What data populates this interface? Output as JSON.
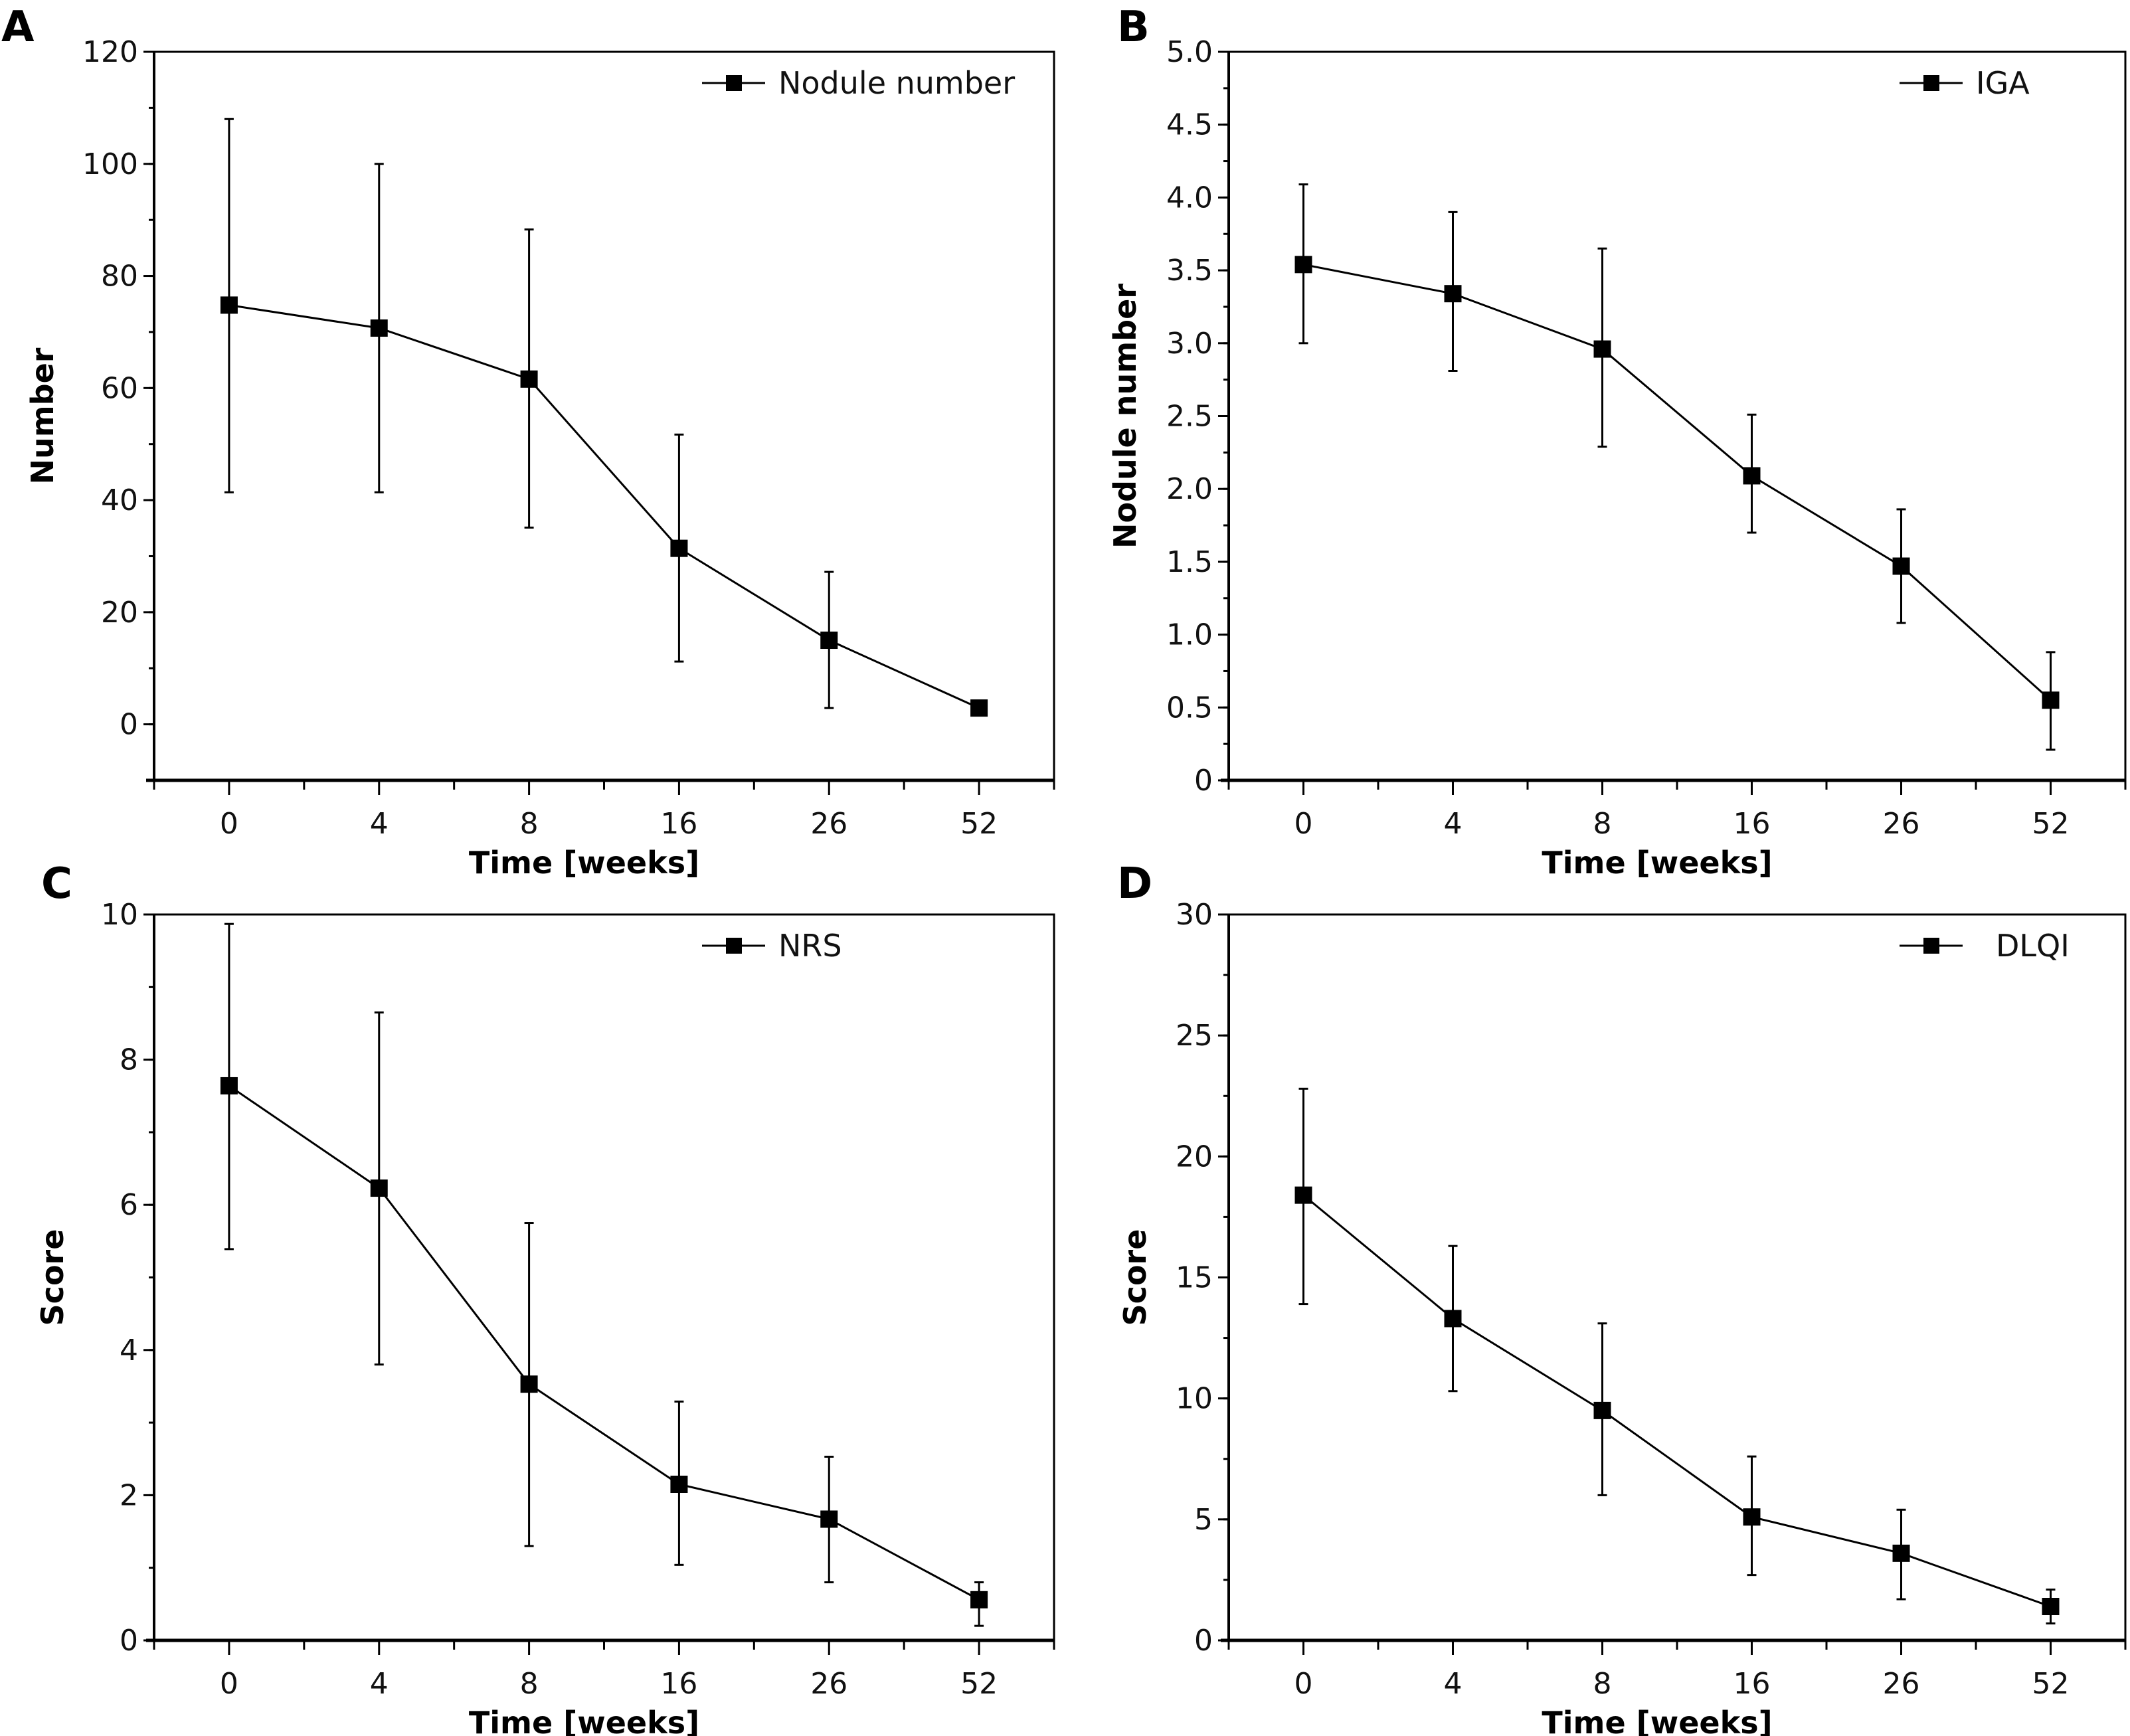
{
  "figure": {
    "panels": [
      "A",
      "B",
      "C",
      "D"
    ]
  },
  "chart_data": [
    {
      "panel": "A",
      "type": "line",
      "title": "",
      "xlabel": "Time [weeks]",
      "ylabel": "Number",
      "categories": [
        "0",
        "4",
        "8",
        "16",
        "26",
        "52"
      ],
      "ylim": [
        -10,
        120
      ],
      "yticks": [
        0,
        20,
        40,
        60,
        80,
        100,
        120
      ],
      "ytick_labels": [
        "0",
        "20",
        "40",
        "60",
        "80",
        "100",
        "120"
      ],
      "yminor_step": 10,
      "grid": false,
      "legend_position": "top-right",
      "series": [
        {
          "name": "Nodule number",
          "marker": "square",
          "values": [
            74.8,
            70.7,
            61.6,
            31.4,
            15.0,
            2.9
          ],
          "error_low": [
            41.4,
            41.4,
            35.1,
            11.2,
            2.9,
            null
          ],
          "error_high": [
            108.0,
            100.0,
            88.3,
            51.7,
            27.2,
            null
          ]
        }
      ]
    },
    {
      "panel": "B",
      "type": "line",
      "title": "",
      "xlabel": "Time [weeks]",
      "ylabel": "Nodule number",
      "categories": [
        "0",
        "4",
        "8",
        "16",
        "26",
        "52"
      ],
      "ylim": [
        0,
        5.0
      ],
      "yticks": [
        0,
        0.5,
        1.0,
        1.5,
        2.0,
        2.5,
        3.0,
        3.5,
        4.0,
        4.5,
        5.0
      ],
      "ytick_labels": [
        "0",
        "0.5",
        "1.0",
        "1.5",
        "2.0",
        "2.5",
        "3.0",
        "3.5",
        "4.0",
        "4.5",
        "5.0"
      ],
      "yminor_step": 0.25,
      "grid": false,
      "legend_position": "top-right",
      "series": [
        {
          "name": "IGA",
          "marker": "square",
          "values": [
            3.54,
            3.34,
            2.96,
            2.09,
            1.47,
            0.55
          ],
          "error_low": [
            3.0,
            2.81,
            2.29,
            1.7,
            1.08,
            0.21
          ],
          "error_high": [
            4.09,
            3.9,
            3.65,
            2.51,
            1.86,
            0.88
          ]
        }
      ]
    },
    {
      "panel": "C",
      "type": "line",
      "title": "",
      "xlabel": "Time [weeks]",
      "ylabel": "Score",
      "categories": [
        "0",
        "4",
        "8",
        "16",
        "26",
        "52"
      ],
      "ylim": [
        0,
        10
      ],
      "yticks": [
        0,
        2,
        4,
        6,
        8,
        10
      ],
      "ytick_labels": [
        "0",
        "2",
        "4",
        "6",
        "8",
        "10"
      ],
      "yminor_step": 1,
      "grid": false,
      "legend_position": "top-right",
      "series": [
        {
          "name": "NRS",
          "marker": "square",
          "values": [
            7.64,
            6.23,
            3.53,
            2.15,
            1.67,
            0.56
          ],
          "error_low": [
            5.39,
            3.8,
            1.3,
            1.04,
            0.8,
            0.2
          ],
          "error_high": [
            9.87,
            8.65,
            5.75,
            3.29,
            2.53,
            0.8
          ]
        }
      ]
    },
    {
      "panel": "D",
      "type": "line",
      "title": "",
      "xlabel": "Time [weeks]",
      "ylabel": "Score",
      "categories": [
        "0",
        "4",
        "8",
        "16",
        "26",
        "52"
      ],
      "ylim": [
        0,
        30
      ],
      "yticks": [
        0,
        5,
        10,
        15,
        20,
        25,
        30
      ],
      "ytick_labels": [
        "0",
        "5",
        "10",
        "15",
        "20",
        "25",
        "30"
      ],
      "yminor_step": 2.5,
      "grid": false,
      "legend_position": "top-right",
      "series": [
        {
          "name": "DLQI",
          "marker": "square",
          "values": [
            18.4,
            13.3,
            9.5,
            5.1,
            3.6,
            1.4
          ],
          "error_low": [
            13.9,
            10.3,
            6.0,
            2.7,
            1.7,
            0.7
          ],
          "error_high": [
            22.8,
            16.3,
            13.1,
            7.6,
            5.4,
            2.1
          ]
        }
      ]
    }
  ]
}
